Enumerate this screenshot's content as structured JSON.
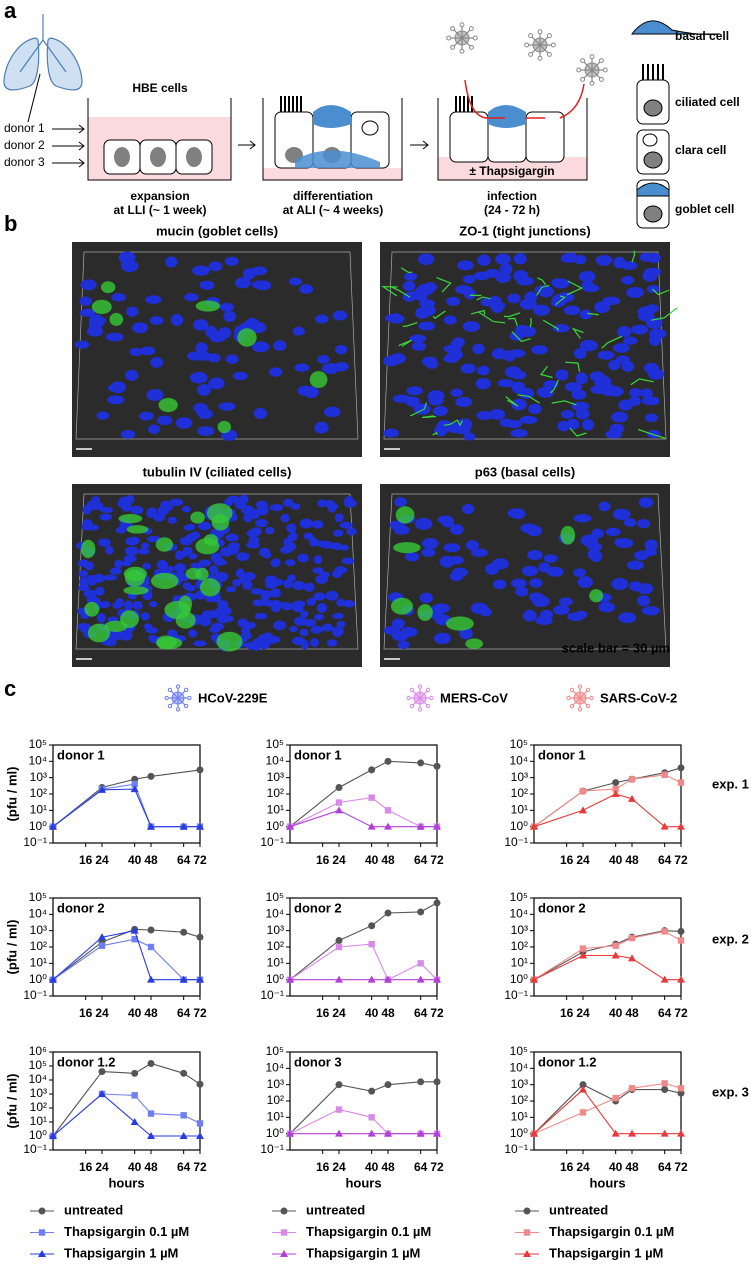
{
  "panel_a": {
    "label": "a",
    "cell_type": "HBE cells",
    "donors": [
      "donor 1",
      "donor 2",
      "donor 3"
    ],
    "steps": [
      {
        "title": "expansion",
        "subtitle": "at LLI (~ 1 week)"
      },
      {
        "title": "differentiation",
        "subtitle": "at ALI (~ 4 weeks)"
      },
      {
        "title": "infection",
        "subtitle": "(24 - 72 h)"
      }
    ],
    "treatment": "± Thapsigargin",
    "cell_legend": [
      "basal cell",
      "ciliated cell",
      "clara cell",
      "goblet cell"
    ]
  },
  "panel_b": {
    "label": "b",
    "images": [
      "mucin (goblet cells)",
      "ZO-1 (tight junctions)",
      "tubulin IV (ciliated cells)",
      "p63 (basal cells)"
    ],
    "scale_bar": "scale bar = 30 µm"
  },
  "panel_c": {
    "label": "c",
    "viruses": [
      {
        "name": "HCoV-229E",
        "color": "#6f7ff0"
      },
      {
        "name": "MERS-CoV",
        "color": "#d88ae8"
      },
      {
        "name": "SARS-CoV-2",
        "color": "#f08a8a"
      }
    ],
    "experiments": [
      "exp. 1",
      "exp. 2",
      "exp. 3"
    ]
  },
  "chart_data": [
    {
      "type": "line",
      "annotation": "donor 1",
      "y_label": "(pfu / ml)",
      "log_y": true,
      "xlim": [
        0,
        72
      ],
      "ylim": [
        0.1,
        100000
      ],
      "xticks": [
        16,
        24,
        40,
        48,
        64,
        72
      ],
      "yticks": [
        {
          "value": 0.1,
          "label": "10⁻¹"
        },
        {
          "value": 1,
          "label": "10⁰"
        },
        {
          "value": 10,
          "label": "10¹"
        },
        {
          "value": 100,
          "label": "10²"
        },
        {
          "value": 1000,
          "label": "10³"
        },
        {
          "value": 10000,
          "label": "10⁴"
        },
        {
          "value": 100000,
          "label": "10⁵"
        }
      ],
      "x": [
        0,
        24,
        40,
        48,
        64,
        72
      ],
      "series": [
        {
          "name": "untreated",
          "color": "#555555",
          "marker": "circle",
          "x": [
            0,
            24,
            40,
            48,
            72
          ],
          "values": [
            1,
            250,
            800,
            1200,
            3000
          ]
        },
        {
          "name": "Thapsigargin 0.1 µM",
          "color": "#6f7ff0",
          "marker": "square",
          "values": [
            1,
            200,
            400,
            1,
            1,
            1
          ]
        },
        {
          "name": "Thapsigargin 1 µM",
          "color": "#2a3ce0",
          "marker": "triangle",
          "values": [
            1,
            180,
            200,
            1,
            1,
            1
          ]
        }
      ]
    },
    {
      "type": "line",
      "annotation": "donor 1",
      "log_y": true,
      "xlim": [
        0,
        72
      ],
      "ylim": [
        0.1,
        100000
      ],
      "xticks": [
        16,
        24,
        40,
        48,
        64,
        72
      ],
      "yticks": [
        {
          "value": 0.1,
          "label": "10⁻¹"
        },
        {
          "value": 1,
          "label": "10⁰"
        },
        {
          "value": 10,
          "label": "10¹"
        },
        {
          "value": 100,
          "label": "10²"
        },
        {
          "value": 1000,
          "label": "10³"
        },
        {
          "value": 10000,
          "label": "10⁴"
        },
        {
          "value": 100000,
          "label": "10⁵"
        }
      ],
      "x": [
        0,
        24,
        40,
        48,
        64,
        72
      ],
      "series": [
        {
          "name": "untreated",
          "color": "#555555",
          "marker": "circle",
          "values": [
            1,
            250,
            3000,
            10000,
            8000,
            5000
          ]
        },
        {
          "name": "Thapsigargin 0.1 µM",
          "color": "#d88ae8",
          "marker": "square",
          "values": [
            1,
            30,
            60,
            10,
            1,
            1
          ]
        },
        {
          "name": "Thapsigargin 1 µM",
          "color": "#b040d8",
          "marker": "triangle",
          "values": [
            1,
            10,
            1,
            1,
            1,
            1
          ]
        }
      ]
    },
    {
      "type": "line",
      "annotation": "donor 1",
      "log_y": true,
      "xlim": [
        0,
        72
      ],
      "ylim": [
        0.1,
        100000
      ],
      "xticks": [
        16,
        24,
        40,
        48,
        64,
        72
      ],
      "yticks": [
        {
          "value": 0.1,
          "label": "10⁻¹"
        },
        {
          "value": 1,
          "label": "10⁰"
        },
        {
          "value": 10,
          "label": "10¹"
        },
        {
          "value": 100,
          "label": "10²"
        },
        {
          "value": 1000,
          "label": "10³"
        },
        {
          "value": 10000,
          "label": "10⁴"
        },
        {
          "value": 100000,
          "label": "10⁵"
        }
      ],
      "x": [
        0,
        24,
        40,
        48,
        64,
        72
      ],
      "series": [
        {
          "name": "untreated",
          "color": "#555555",
          "marker": "circle",
          "values": [
            1,
            150,
            500,
            800,
            2000,
            4000
          ]
        },
        {
          "name": "Thapsigargin 0.1 µM",
          "color": "#f08a8a",
          "marker": "square",
          "values": [
            1,
            150,
            200,
            800,
            1500,
            500
          ]
        },
        {
          "name": "Thapsigargin 1 µM",
          "color": "#e83a3a",
          "marker": "triangle",
          "values": [
            1,
            10,
            100,
            50,
            1,
            1
          ]
        }
      ]
    },
    {
      "type": "line",
      "annotation": "donor 2",
      "y_label": "(pfu / ml)",
      "log_y": true,
      "xlim": [
        0,
        72
      ],
      "ylim": [
        0.1,
        100000
      ],
      "xticks": [
        16,
        24,
        40,
        48,
        64,
        72
      ],
      "yticks": [
        {
          "value": 0.1,
          "label": "10⁻¹"
        },
        {
          "value": 1,
          "label": "10⁰"
        },
        {
          "value": 10,
          "label": "10¹"
        },
        {
          "value": 100,
          "label": "10²"
        },
        {
          "value": 1000,
          "label": "10³"
        },
        {
          "value": 10000,
          "label": "10⁴"
        },
        {
          "value": 100000,
          "label": "10⁵"
        }
      ],
      "x": [
        0,
        24,
        40,
        48,
        64,
        72
      ],
      "series": [
        {
          "name": "untreated",
          "color": "#555555",
          "marker": "circle",
          "values": [
            1,
            200,
            1200,
            1100,
            800,
            400
          ]
        },
        {
          "name": "Thapsigargin 0.1 µM",
          "color": "#6f7ff0",
          "marker": "square",
          "values": [
            1,
            120,
            300,
            100,
            1,
            1
          ]
        },
        {
          "name": "Thapsigargin 1 µM",
          "color": "#2a3ce0",
          "marker": "triangle",
          "values": [
            1,
            400,
            1000,
            1,
            1,
            1
          ]
        }
      ]
    },
    {
      "type": "line",
      "annotation": "donor 2",
      "log_y": true,
      "xlim": [
        0,
        72
      ],
      "ylim": [
        0.1,
        100000
      ],
      "xticks": [
        16,
        24,
        40,
        48,
        64,
        72
      ],
      "yticks": [
        {
          "value": 0.1,
          "label": "10⁻¹"
        },
        {
          "value": 1,
          "label": "10⁰"
        },
        {
          "value": 10,
          "label": "10¹"
        },
        {
          "value": 100,
          "label": "10²"
        },
        {
          "value": 1000,
          "label": "10³"
        },
        {
          "value": 10000,
          "label": "10⁴"
        },
        {
          "value": 100000,
          "label": "10⁵"
        }
      ],
      "x": [
        0,
        24,
        40,
        48,
        64,
        72
      ],
      "series": [
        {
          "name": "untreated",
          "color": "#555555",
          "marker": "circle",
          "values": [
            1,
            250,
            2000,
            12000,
            14000,
            50000
          ]
        },
        {
          "name": "Thapsigargin 0.1 µM",
          "color": "#d88ae8",
          "marker": "square",
          "values": [
            1,
            100,
            150,
            1,
            10,
            1
          ]
        },
        {
          "name": "Thapsigargin 1 µM",
          "color": "#b040d8",
          "marker": "triangle",
          "values": [
            1,
            1,
            1,
            1,
            1,
            1
          ]
        }
      ]
    },
    {
      "type": "line",
      "annotation": "donor 2",
      "log_y": true,
      "xlim": [
        0,
        72
      ],
      "ylim": [
        0.1,
        100000
      ],
      "xticks": [
        16,
        24,
        40,
        48,
        64,
        72
      ],
      "yticks": [
        {
          "value": 0.1,
          "label": "10⁻¹"
        },
        {
          "value": 1,
          "label": "10⁰"
        },
        {
          "value": 10,
          "label": "10¹"
        },
        {
          "value": 100,
          "label": "10²"
        },
        {
          "value": 1000,
          "label": "10³"
        },
        {
          "value": 10000,
          "label": "10⁴"
        },
        {
          "value": 100000,
          "label": "10⁵"
        }
      ],
      "x": [
        0,
        24,
        40,
        48,
        64,
        72
      ],
      "series": [
        {
          "name": "untreated",
          "color": "#555555",
          "marker": "circle",
          "values": [
            1,
            50,
            150,
            400,
            1000,
            900
          ]
        },
        {
          "name": "Thapsigargin 0.1 µM",
          "color": "#f08a8a",
          "marker": "square",
          "values": [
            1,
            80,
            120,
            350,
            900,
            250
          ]
        },
        {
          "name": "Thapsigargin 1 µM",
          "color": "#e83a3a",
          "marker": "triangle",
          "values": [
            1,
            30,
            30,
            20,
            1,
            1
          ]
        }
      ]
    },
    {
      "type": "line",
      "annotation": "donor 1.2",
      "y_label": "(pfu / ml)",
      "x_label": "hours",
      "log_y": true,
      "xlim": [
        0,
        72
      ],
      "ylim": [
        0.1,
        1000000
      ],
      "xticks": [
        16,
        24,
        40,
        48,
        64,
        72
      ],
      "yticks": [
        {
          "value": 0.1,
          "label": "10⁻¹"
        },
        {
          "value": 1,
          "label": "10⁰"
        },
        {
          "value": 10,
          "label": "10¹"
        },
        {
          "value": 100,
          "label": "10²"
        },
        {
          "value": 1000,
          "label": "10³"
        },
        {
          "value": 10000,
          "label": "10⁴"
        },
        {
          "value": 100000,
          "label": "10⁵"
        },
        {
          "value": 1000000,
          "label": "10⁶"
        }
      ],
      "x": [
        0,
        24,
        40,
        48,
        64,
        72
      ],
      "series": [
        {
          "name": "untreated",
          "color": "#555555",
          "marker": "circle",
          "values": [
            1,
            40000,
            30000,
            150000,
            30000,
            5000
          ]
        },
        {
          "name": "Thapsigargin 0.1 µM",
          "color": "#6f7ff0",
          "marker": "square",
          "values": [
            1,
            1000,
            800,
            40,
            30,
            8
          ]
        },
        {
          "name": "Thapsigargin 1 µM",
          "color": "#2a3ce0",
          "marker": "triangle",
          "values": [
            1,
            1000,
            10,
            1,
            1,
            1
          ]
        }
      ]
    },
    {
      "type": "line",
      "annotation": "donor 3",
      "x_label": "hours",
      "log_y": true,
      "xlim": [
        0,
        72
      ],
      "ylim": [
        0.1,
        100000
      ],
      "xticks": [
        16,
        24,
        40,
        48,
        64,
        72
      ],
      "yticks": [
        {
          "value": 0.1,
          "label": "10⁻¹"
        },
        {
          "value": 1,
          "label": "10⁰"
        },
        {
          "value": 10,
          "label": "10¹"
        },
        {
          "value": 100,
          "label": "10²"
        },
        {
          "value": 1000,
          "label": "10³"
        },
        {
          "value": 10000,
          "label": "10⁴"
        },
        {
          "value": 100000,
          "label": "10⁵"
        }
      ],
      "x": [
        0,
        24,
        40,
        48,
        64,
        72
      ],
      "series": [
        {
          "name": "untreated",
          "color": "#555555",
          "marker": "circle",
          "values": [
            1,
            1000,
            400,
            1000,
            1500,
            1500
          ]
        },
        {
          "name": "Thapsigargin 0.1 µM",
          "color": "#d88ae8",
          "marker": "square",
          "values": [
            1,
            30,
            10,
            1,
            1,
            1
          ]
        },
        {
          "name": "Thapsigargin 1 µM",
          "color": "#b040d8",
          "marker": "triangle",
          "values": [
            1,
            1,
            1,
            1,
            1,
            1
          ]
        }
      ]
    },
    {
      "type": "line",
      "annotation": "donor 1.2",
      "x_label": "hours",
      "log_y": true,
      "xlim": [
        0,
        72
      ],
      "ylim": [
        0.1,
        100000
      ],
      "xticks": [
        16,
        24,
        40,
        48,
        64,
        72
      ],
      "yticks": [
        {
          "value": 0.1,
          "label": "10⁻¹"
        },
        {
          "value": 1,
          "label": "10⁰"
        },
        {
          "value": 10,
          "label": "10¹"
        },
        {
          "value": 100,
          "label": "10²"
        },
        {
          "value": 1000,
          "label": "10³"
        },
        {
          "value": 10000,
          "label": "10⁴"
        },
        {
          "value": 100000,
          "label": "10⁵"
        }
      ],
      "x": [
        0,
        24,
        40,
        48,
        64,
        72
      ],
      "series": [
        {
          "name": "untreated",
          "color": "#555555",
          "marker": "circle",
          "values": [
            1,
            1000,
            100,
            500,
            500,
            300
          ]
        },
        {
          "name": "Thapsigargin 0.1 µM",
          "color": "#f08a8a",
          "marker": "square",
          "values": [
            1,
            20,
            150,
            600,
            1200,
            600
          ]
        },
        {
          "name": "Thapsigargin 1 µM",
          "color": "#e83a3a",
          "marker": "triangle",
          "values": [
            1,
            500,
            1,
            1,
            1,
            1
          ]
        }
      ]
    }
  ]
}
